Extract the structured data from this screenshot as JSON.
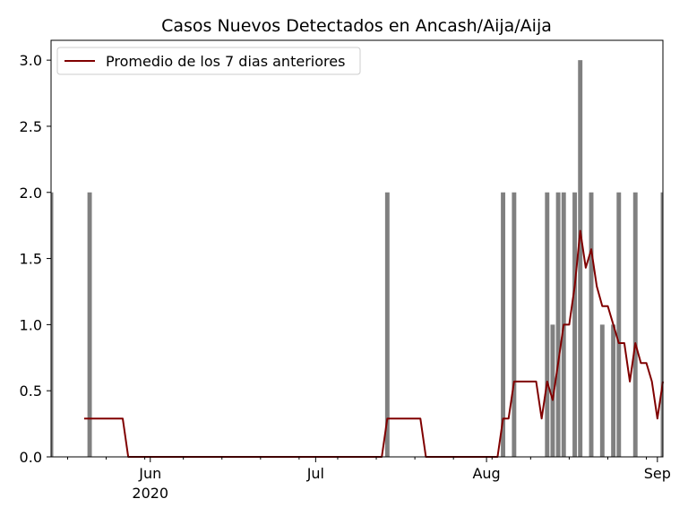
{
  "chart_data": {
    "type": "bar",
    "title": "Casos Nuevos Detectados en Ancash/Aija/Aija",
    "xlabel": "",
    "ylabel": "",
    "x_range": [
      "2020-05-14",
      "2020-09-02"
    ],
    "ylim": [
      0,
      3.15
    ],
    "grid": false,
    "legend_placement": "top-left",
    "y_ticks": [
      "0.0",
      "0.5",
      "1.0",
      "1.5",
      "2.0",
      "2.5",
      "3.0"
    ],
    "x_ticks": [
      {
        "date": "2020-06-01",
        "label": "Jun",
        "sublabel": "2020"
      },
      {
        "date": "2020-07-01",
        "label": "Jul",
        "sublabel": ""
      },
      {
        "date": "2020-08-01",
        "label": "Aug",
        "sublabel": ""
      },
      {
        "date": "2020-09-01",
        "label": "Sep",
        "sublabel": ""
      }
    ],
    "bar_color": "#808080",
    "line_color": "#800000",
    "bars": [
      {
        "date": "2020-05-14",
        "value": 2
      },
      {
        "date": "2020-05-21",
        "value": 2
      },
      {
        "date": "2020-07-14",
        "value": 2
      },
      {
        "date": "2020-08-04",
        "value": 2
      },
      {
        "date": "2020-08-06",
        "value": 2
      },
      {
        "date": "2020-08-12",
        "value": 2
      },
      {
        "date": "2020-08-13",
        "value": 1
      },
      {
        "date": "2020-08-14",
        "value": 2
      },
      {
        "date": "2020-08-15",
        "value": 2
      },
      {
        "date": "2020-08-17",
        "value": 2
      },
      {
        "date": "2020-08-18",
        "value": 3
      },
      {
        "date": "2020-08-20",
        "value": 2
      },
      {
        "date": "2020-08-22",
        "value": 1
      },
      {
        "date": "2020-08-24",
        "value": 1
      },
      {
        "date": "2020-08-25",
        "value": 2
      },
      {
        "date": "2020-08-28",
        "value": 2
      },
      {
        "date": "2020-09-02",
        "value": 2
      }
    ],
    "series": [
      {
        "name": "Promedio de los 7 dias anteriores",
        "points": [
          [
            "2020-05-20",
            0.29
          ],
          [
            "2020-05-27",
            0.29
          ],
          [
            "2020-05-28",
            0.0
          ],
          [
            "2020-07-13",
            0.0
          ],
          [
            "2020-07-14",
            0.29
          ],
          [
            "2020-07-20",
            0.29
          ],
          [
            "2020-07-21",
            0.0
          ],
          [
            "2020-08-03",
            0.0
          ],
          [
            "2020-08-04",
            0.29
          ],
          [
            "2020-08-05",
            0.29
          ],
          [
            "2020-08-06",
            0.57
          ],
          [
            "2020-08-10",
            0.57
          ],
          [
            "2020-08-11",
            0.29
          ],
          [
            "2020-08-12",
            0.57
          ],
          [
            "2020-08-13",
            0.43
          ],
          [
            "2020-08-14",
            0.71
          ],
          [
            "2020-08-15",
            1.0
          ],
          [
            "2020-08-16",
            1.0
          ],
          [
            "2020-08-17",
            1.29
          ],
          [
            "2020-08-18",
            1.71
          ],
          [
            "2020-08-19",
            1.43
          ],
          [
            "2020-08-20",
            1.57
          ],
          [
            "2020-08-21",
            1.29
          ],
          [
            "2020-08-22",
            1.14
          ],
          [
            "2020-08-23",
            1.14
          ],
          [
            "2020-08-24",
            1.0
          ],
          [
            "2020-08-25",
            0.86
          ],
          [
            "2020-08-26",
            0.86
          ],
          [
            "2020-08-27",
            0.57
          ],
          [
            "2020-08-28",
            0.86
          ],
          [
            "2020-08-29",
            0.71
          ],
          [
            "2020-08-30",
            0.71
          ],
          [
            "2020-08-31",
            0.57
          ],
          [
            "2020-09-01",
            0.29
          ],
          [
            "2020-09-02",
            0.57
          ]
        ]
      }
    ]
  }
}
